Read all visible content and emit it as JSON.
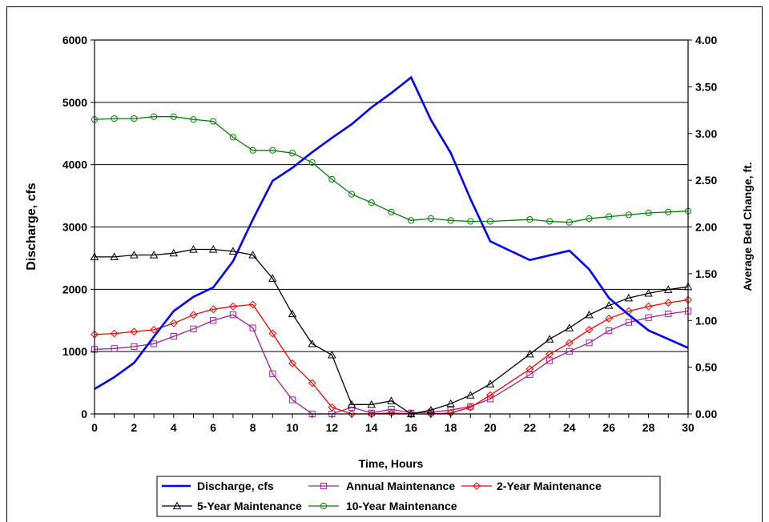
{
  "chart_data": {
    "type": "line",
    "xlabel": "Time, Hours",
    "ylabel_left": "Discharge, cfs",
    "ylabel_right": "Average Bed Change, ft.",
    "xlim": [
      0,
      30
    ],
    "ylim_left": [
      0,
      6000
    ],
    "ylim_right": [
      0,
      4
    ],
    "xticks": [
      "0",
      "2",
      "4",
      "6",
      "8",
      "10",
      "12",
      "14",
      "16",
      "18",
      "20",
      "22",
      "24",
      "26",
      "28",
      "30"
    ],
    "yticks_left": [
      "0",
      "1000",
      "2000",
      "3000",
      "4000",
      "5000",
      "6000"
    ],
    "yticks_right": [
      "0.00",
      "0.50",
      "1.00",
      "1.50",
      "2.00",
      "2.50",
      "3.00",
      "3.50",
      "4.00"
    ],
    "grid": "horizontal",
    "legend_placement": "bottom",
    "series": [
      {
        "name": "Discharge, cfs",
        "axis": "left",
        "color": "#0000ff",
        "marker": "none",
        "x": [
          0,
          1,
          2,
          3,
          4,
          5,
          6,
          7,
          8,
          9,
          10,
          11,
          12,
          13,
          14,
          15,
          16,
          17,
          18,
          19,
          20,
          22,
          24,
          25,
          26,
          27,
          28,
          29,
          30
        ],
        "values": [
          400,
          590,
          820,
          1240,
          1650,
          1880,
          2030,
          2450,
          3120,
          3740,
          3950,
          4200,
          4430,
          4650,
          4920,
          5150,
          5400,
          4720,
          4190,
          3450,
          2770,
          2470,
          2620,
          2320,
          1860,
          1590,
          1340,
          1200,
          1060
        ]
      },
      {
        "name": "Annual Maintenance",
        "axis": "right",
        "color": "#a020a0",
        "marker": "square",
        "x": [
          0,
          1,
          2,
          3,
          4,
          5,
          6,
          7,
          8,
          9,
          10,
          11,
          12,
          13,
          14,
          15,
          16,
          17,
          18,
          19,
          20,
          22,
          23,
          24,
          25,
          26,
          27,
          28,
          29,
          30
        ],
        "values": [
          0.69,
          0.7,
          0.72,
          0.75,
          0.83,
          0.91,
          1.0,
          1.06,
          0.92,
          0.43,
          0.15,
          0.0,
          0.0,
          0.07,
          0.01,
          0.05,
          0.01,
          0.02,
          0.04,
          0.08,
          0.16,
          0.42,
          0.57,
          0.67,
          0.76,
          0.89,
          0.98,
          1.03,
          1.07,
          1.1
        ]
      },
      {
        "name": "2-Year Maintenance",
        "axis": "right",
        "color": "#ff0000",
        "marker": "diamond",
        "x": [
          0,
          1,
          2,
          3,
          4,
          5,
          6,
          7,
          8,
          9,
          10,
          11,
          12,
          13,
          14,
          15,
          16,
          17,
          18,
          19,
          20,
          22,
          23,
          24,
          25,
          26,
          27,
          28,
          29,
          30
        ],
        "values": [
          0.85,
          0.86,
          0.88,
          0.9,
          0.97,
          1.06,
          1.12,
          1.15,
          1.17,
          0.86,
          0.54,
          0.33,
          0.07,
          0.0,
          0.0,
          0.01,
          0.0,
          0.0,
          0.01,
          0.07,
          0.2,
          0.48,
          0.64,
          0.76,
          0.9,
          1.02,
          1.1,
          1.15,
          1.19,
          1.22
        ]
      },
      {
        "name": "5-Year Maintenance",
        "axis": "right",
        "color": "#000000",
        "marker": "triangle",
        "x": [
          0,
          1,
          2,
          3,
          4,
          5,
          6,
          7,
          8,
          9,
          10,
          11,
          12,
          13,
          14,
          15,
          16,
          17,
          18,
          19,
          20,
          22,
          23,
          24,
          25,
          26,
          27,
          28,
          29,
          30
        ],
        "values": [
          1.68,
          1.68,
          1.7,
          1.7,
          1.72,
          1.76,
          1.76,
          1.74,
          1.7,
          1.45,
          1.07,
          0.75,
          0.63,
          0.1,
          0.1,
          0.14,
          0.0,
          0.04,
          0.11,
          0.2,
          0.32,
          0.64,
          0.8,
          0.92,
          1.06,
          1.16,
          1.24,
          1.29,
          1.33,
          1.36
        ]
      },
      {
        "name": "10-Year Maintenance",
        "axis": "right",
        "color": "#008000",
        "marker": "circle",
        "x": [
          0,
          1,
          2,
          3,
          4,
          5,
          6,
          7,
          8,
          9,
          10,
          11,
          12,
          13,
          14,
          15,
          16,
          17,
          18,
          19,
          20,
          22,
          23,
          24,
          25,
          26,
          27,
          28,
          29,
          30
        ],
        "values": [
          3.15,
          3.16,
          3.16,
          3.18,
          3.18,
          3.15,
          3.13,
          2.96,
          2.82,
          2.82,
          2.79,
          2.69,
          2.51,
          2.35,
          2.26,
          2.16,
          2.07,
          2.09,
          2.07,
          2.06,
          2.06,
          2.08,
          2.06,
          2.05,
          2.09,
          2.11,
          2.13,
          2.15,
          2.16,
          2.17
        ]
      }
    ]
  }
}
